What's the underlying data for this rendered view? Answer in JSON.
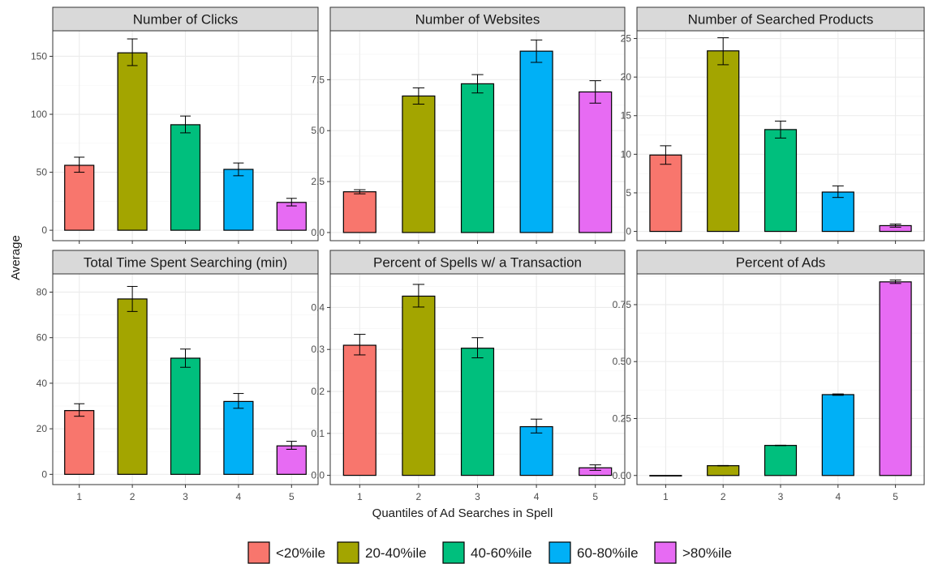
{
  "chart_data": {
    "type": "bar",
    "layout": "faceted 2x3 grid, independent y scales",
    "xlabel": "Quantiles of Ad Searches in Spell",
    "ylabel": "Average",
    "categories": [
      "1",
      "2",
      "3",
      "4",
      "5"
    ],
    "legend": {
      "position": "bottom",
      "entries": [
        {
          "label": "<20%ile",
          "color": "#F8766D"
        },
        {
          "label": "20-40%ile",
          "color": "#A3A500"
        },
        {
          "label": "40-60%ile",
          "color": "#00BF7D"
        },
        {
          "label": "60-80%ile",
          "color": "#00B0F6"
        },
        {
          "label": ">80%ile",
          "color": "#E76BF3"
        }
      ]
    },
    "grid": true,
    "panels": [
      {
        "title": "Number of Clicks",
        "ylim": [
          -9,
          172
        ],
        "yticks": [
          0,
          50,
          100,
          150
        ],
        "yticklabels": [
          "0",
          "50",
          "100",
          "150"
        ],
        "values": [
          56,
          153,
          91,
          52.5,
          24
        ],
        "err_low": [
          50,
          142,
          84,
          47,
          21
        ],
        "err_high": [
          63,
          165,
          98.5,
          58,
          27.5
        ]
      },
      {
        "title": "Number of Websites",
        "ylim": [
          -0.4,
          9.9
        ],
        "yticks": [
          0,
          2.5,
          5.0,
          7.5
        ],
        "yticklabels": [
          "0.0",
          "2.5",
          "5.0",
          "7.5"
        ],
        "values": [
          2.0,
          6.7,
          7.3,
          8.9,
          6.9
        ],
        "err_low": [
          1.9,
          6.3,
          6.85,
          8.35,
          6.35
        ],
        "err_high": [
          2.1,
          7.1,
          7.75,
          9.45,
          7.45
        ]
      },
      {
        "title": "Number of Searched Products",
        "ylim": [
          -1.2,
          26
        ],
        "yticks": [
          0,
          5,
          10,
          15,
          20,
          25
        ],
        "yticklabels": [
          "0",
          "5",
          "10",
          "15",
          "20",
          "25"
        ],
        "values": [
          9.9,
          23.4,
          13.2,
          5.1,
          0.75
        ],
        "err_low": [
          8.7,
          21.6,
          12.1,
          4.4,
          0.55
        ],
        "err_high": [
          11.1,
          25.1,
          14.3,
          5.9,
          0.95
        ]
      },
      {
        "title": "Total Time Spent Searching (min)",
        "ylim": [
          -4.5,
          88
        ],
        "yticks": [
          0,
          20,
          40,
          60,
          80
        ],
        "yticklabels": [
          "0",
          "20",
          "40",
          "60",
          "80"
        ],
        "values": [
          28,
          77,
          51,
          32,
          12.5
        ],
        "err_low": [
          25.5,
          71.5,
          47,
          29,
          11
        ],
        "err_high": [
          31,
          82.5,
          55,
          35.5,
          14.5
        ]
      },
      {
        "title": "Percent of Spells w/ a Transaction",
        "ylim": [
          -0.022,
          0.48
        ],
        "yticks": [
          0,
          0.1,
          0.2,
          0.3,
          0.4
        ],
        "yticklabels": [
          "0.0",
          "0.1",
          "0.2",
          "0.3",
          "0.4"
        ],
        "values": [
          0.31,
          0.427,
          0.303,
          0.116,
          0.018
        ],
        "err_low": [
          0.287,
          0.401,
          0.28,
          0.101,
          0.012
        ],
        "err_high": [
          0.336,
          0.455,
          0.328,
          0.134,
          0.025
        ]
      },
      {
        "title": "Percent of Ads",
        "ylim": [
          -0.04,
          0.885
        ],
        "yticks": [
          0,
          0.25,
          0.5,
          0.75
        ],
        "yticklabels": [
          "0.00",
          "0.25",
          "0.50",
          "0.75"
        ],
        "values": [
          0.0,
          0.043,
          0.132,
          0.355,
          0.85
        ],
        "err_low": [
          0.0,
          0.042,
          0.131,
          0.352,
          0.843
        ],
        "err_high": [
          0.0,
          0.044,
          0.133,
          0.358,
          0.858
        ]
      }
    ]
  }
}
